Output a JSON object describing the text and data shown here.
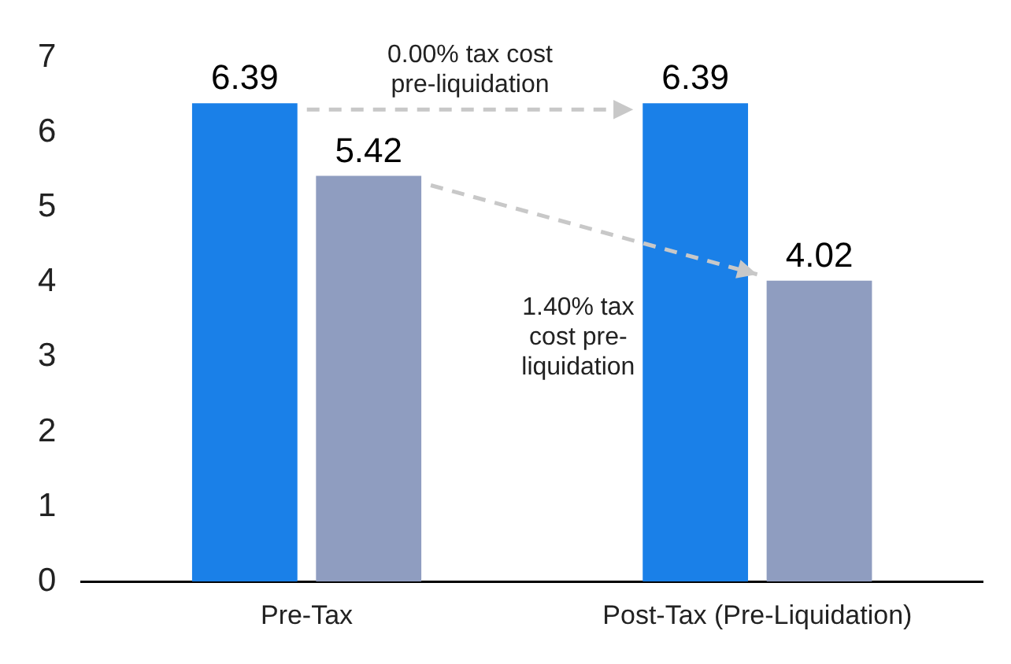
{
  "chart_data": {
    "type": "bar",
    "categories": [
      "Pre-Tax",
      "Post-Tax (Pre-Liquidation)"
    ],
    "series": [
      {
        "color": "#1a80e8",
        "values": [
          6.39,
          6.39
        ]
      },
      {
        "color": "#8f9dc0",
        "values": [
          5.42,
          4.02
        ]
      }
    ],
    "ylim": [
      0,
      7
    ],
    "yticks": [
      0,
      1,
      2,
      3,
      4,
      5,
      6,
      7
    ],
    "grid": false,
    "legend": false,
    "data_labels": true,
    "annotations": [
      "0.00% tax cost\npre-liquidation",
      "1.40% tax\ncost pre-\nliquidation"
    ]
  }
}
